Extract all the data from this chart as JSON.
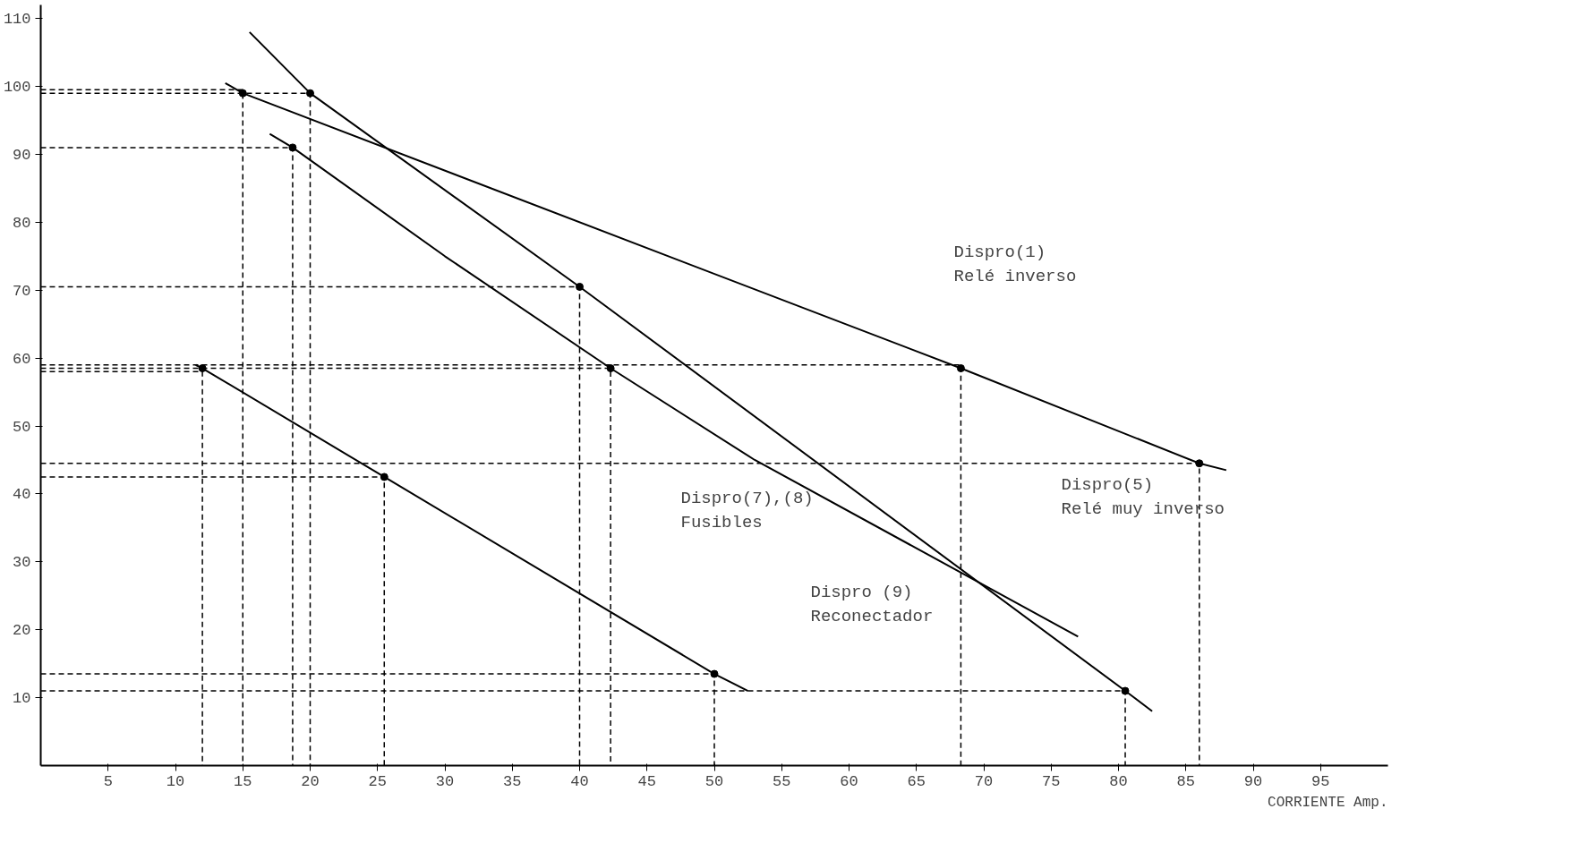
{
  "chart_data": {
    "type": "line",
    "xlabel": "CORRIENTE Amp.",
    "xlim": [
      0,
      100
    ],
    "ylim": [
      0,
      112
    ],
    "xticks": [
      5,
      10,
      15,
      20,
      25,
      30,
      35,
      40,
      45,
      50,
      55,
      60,
      65,
      70,
      75,
      80,
      85,
      90,
      95
    ],
    "yticks": [
      10,
      20,
      30,
      40,
      50,
      60,
      70,
      80,
      90,
      100,
      110
    ],
    "grid": false,
    "line_style": "solid",
    "marker": "none",
    "series": [
      {
        "color": "#000000",
        "x": [
          13.7,
          15,
          68.3,
          86,
          88
        ],
        "values": [
          100.5,
          99,
          58.5,
          44.5,
          43.5
        ]
      },
      {
        "color": "#000000",
        "x": [
          15.5,
          20,
          40,
          80.5,
          82.5
        ],
        "values": [
          108,
          99,
          70.5,
          11,
          8
        ]
      },
      {
        "color": "#000000",
        "x": [
          17,
          18.7,
          30,
          42.3,
          53,
          65,
          77
        ],
        "values": [
          93,
          91,
          75,
          58.5,
          45,
          32,
          19
        ]
      },
      {
        "color": "#000000",
        "x": [
          11.5,
          12,
          25.5,
          50,
          52.5
        ],
        "values": [
          59,
          58.5,
          42.5,
          13.5,
          11
        ]
      },
      {
        "type": "scatter",
        "marker": "circle",
        "color": "#000000",
        "x": [
          15,
          68.3,
          86,
          20,
          40,
          80.5,
          18.7,
          42.3,
          12,
          25.5,
          50
        ],
        "values": [
          99,
          58.5,
          44.5,
          99,
          70.5,
          11,
          91,
          58.5,
          58.5,
          42.5,
          13.5
        ]
      },
      {
        "line_style": "dashed",
        "color": "#000000",
        "x": [
          0,
          15,
          15
        ],
        "values": [
          99.5,
          99.5,
          0
        ]
      },
      {
        "line_style": "dashed",
        "color": "#000000",
        "x": [
          0,
          20,
          20
        ],
        "values": [
          99,
          99,
          0
        ]
      },
      {
        "line_style": "dashed",
        "color": "#000000",
        "x": [
          0,
          18.7,
          18.7
        ],
        "values": [
          91,
          91,
          0
        ]
      },
      {
        "line_style": "dashed",
        "color": "#000000",
        "x": [
          0,
          40,
          40
        ],
        "values": [
          70.5,
          70.5,
          0
        ]
      },
      {
        "line_style": "dashed",
        "color": "#000000",
        "x": [
          0,
          68.3,
          68.3
        ],
        "values": [
          59,
          59,
          0
        ]
      },
      {
        "line_style": "dashed",
        "color": "#000000",
        "x": [
          0,
          42.3,
          42.3
        ],
        "values": [
          58.5,
          58.5,
          0
        ]
      },
      {
        "line_style": "dashed",
        "color": "#000000",
        "x": [
          0,
          12,
          12
        ],
        "values": [
          58,
          58,
          0
        ]
      },
      {
        "line_style": "dashed",
        "color": "#000000",
        "x": [
          0,
          86,
          86
        ],
        "values": [
          44.5,
          44.5,
          0
        ]
      },
      {
        "line_style": "dashed",
        "color": "#000000",
        "x": [
          0,
          25.5,
          25.5
        ],
        "values": [
          42.5,
          42.5,
          0
        ]
      },
      {
        "line_style": "dashed",
        "color": "#000000",
        "x": [
          0,
          50,
          50
        ],
        "values": [
          13.5,
          13.5,
          0
        ]
      },
      {
        "line_style": "dashed",
        "color": "#000000",
        "x": [
          0,
          80.5,
          80.5
        ],
        "values": [
          11,
          11,
          0
        ]
      }
    ],
    "annotations": [
      "Dispro(1)\nRelé inverso",
      "Dispro(7),(8)\nFusibles",
      "Dispro(5)\nRelé muy inverso",
      "Dispro (9)\nReconectador"
    ]
  }
}
